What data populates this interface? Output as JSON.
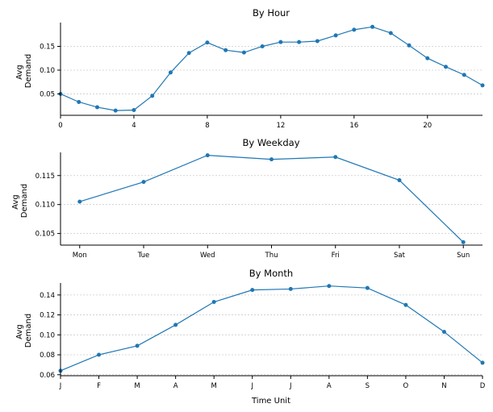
{
  "chart_data": [
    {
      "type": "line",
      "title": "By Hour",
      "ylabel": "Avg\nDemand",
      "xlabel": "",
      "color": "#1f77b4",
      "x": [
        0,
        1,
        2,
        3,
        4,
        5,
        6,
        7,
        8,
        9,
        10,
        11,
        12,
        13,
        14,
        15,
        16,
        17,
        18,
        19,
        20,
        21,
        22,
        23
      ],
      "values": [
        0.05,
        0.033,
        0.022,
        0.015,
        0.016,
        0.046,
        0.095,
        0.136,
        0.158,
        0.142,
        0.137,
        0.15,
        0.159,
        0.159,
        0.161,
        0.173,
        0.185,
        0.191,
        0.178,
        0.152,
        0.125,
        0.107,
        0.09,
        0.068
      ],
      "xticks": [
        0,
        4,
        8,
        12,
        16,
        20
      ],
      "xtick_labels": [
        "0",
        "4",
        "8",
        "12",
        "16",
        "20"
      ],
      "xlim": [
        0,
        23
      ],
      "ylim": [
        0.005,
        0.2
      ],
      "yticks": [
        0.05,
        0.1,
        0.15
      ],
      "ytick_labels": [
        "0.05",
        "0.10",
        "0.15"
      ],
      "grid": "y"
    },
    {
      "type": "line",
      "title": "By Weekday",
      "ylabel": "Avg\nDemand",
      "xlabel": "",
      "color": "#1f77b4",
      "categories": [
        "Mon",
        "Tue",
        "Wed",
        "Thu",
        "Fri",
        "Sat",
        "Sun"
      ],
      "values": [
        0.1105,
        0.1139,
        0.1185,
        0.1178,
        0.1182,
        0.1142,
        0.1035
      ],
      "xlim": [
        -0.3,
        6.3
      ],
      "ylim": [
        0.103,
        0.119
      ],
      "yticks": [
        0.105,
        0.11,
        0.115
      ],
      "ytick_labels": [
        "0.105",
        "0.110",
        "0.115"
      ],
      "grid": "y"
    },
    {
      "type": "line",
      "title": "By Month",
      "ylabel": "Avg\nDemand",
      "xlabel": "Time Unit",
      "color": "#1f77b4",
      "categories": [
        "J",
        "F",
        "M",
        "A",
        "M",
        "J",
        "J",
        "A",
        "S",
        "O",
        "N",
        "D"
      ],
      "values": [
        0.064,
        0.08,
        0.089,
        0.11,
        0.133,
        0.145,
        0.146,
        0.149,
        0.147,
        0.13,
        0.103,
        0.072
      ],
      "xlim": [
        0,
        11
      ],
      "ylim": [
        0.059,
        0.152
      ],
      "yticks": [
        0.06,
        0.08,
        0.1,
        0.12,
        0.14
      ],
      "ytick_labels": [
        "0.06",
        "0.08",
        "0.10",
        "0.12",
        "0.14"
      ],
      "grid": "y"
    }
  ]
}
